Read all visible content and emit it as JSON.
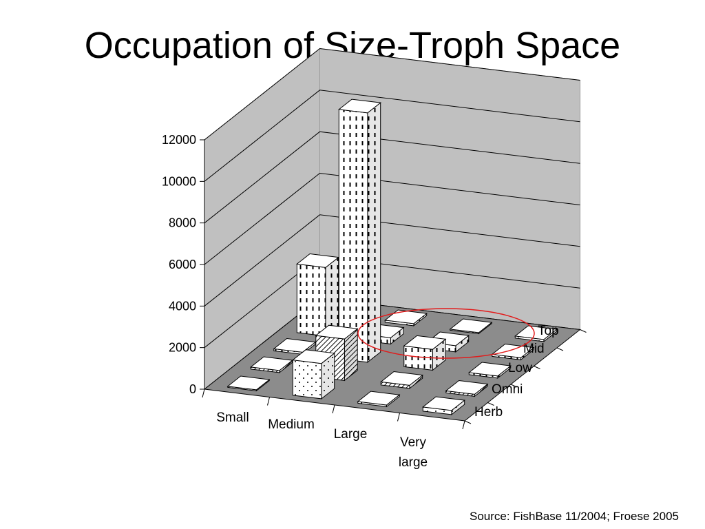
{
  "title": "Occupation of Size-Troph Space",
  "source": "Source: FishBase 11/2004; Froese 2005",
  "chart_data": {
    "type": "bar",
    "subtype": "3d-bar",
    "title": "Occupation of Size-Troph Space",
    "size_categories": [
      "Small",
      "Medium",
      "Large",
      "Very large"
    ],
    "troph_categories": [
      "Herb",
      "Omni",
      "Low",
      "Mid",
      "Top"
    ],
    "z_ticks": [
      "0",
      "2000",
      "4000",
      "6000",
      "8000",
      "10000",
      "12000"
    ],
    "zlim": [
      0,
      12000
    ],
    "series": [
      {
        "name": "Herb",
        "values": [
          50,
          1700,
          80,
          200
        ]
      },
      {
        "name": "Omni",
        "values": [
          100,
          2000,
          150,
          100
        ]
      },
      {
        "name": "Low",
        "values": [
          100,
          12000,
          1000,
          100
        ]
      },
      {
        "name": "Mid",
        "values": [
          3300,
          300,
          300,
          100
        ]
      },
      {
        "name": "Top",
        "values": [
          100,
          100,
          50,
          100
        ]
      }
    ],
    "highlight": {
      "shape": "ellipse",
      "color": "#e21b1b"
    },
    "colors": {
      "floor": "#8c8c8c",
      "walls": "#c0c0c0",
      "bar": "#ffffff"
    }
  }
}
